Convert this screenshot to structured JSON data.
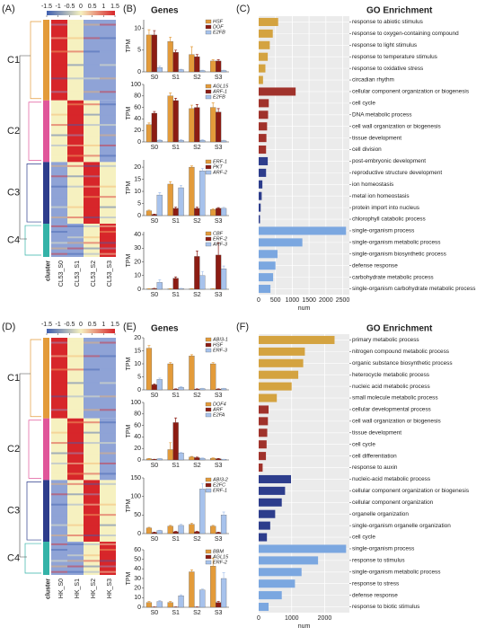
{
  "chart_data": [
    {
      "type": "heatmap",
      "panel": "(A)",
      "colorbar_ticks": [
        -1.5,
        -1,
        -0.5,
        0,
        0.5,
        1,
        1.5
      ],
      "clusters": [
        "C1",
        "C2",
        "C3",
        "C4"
      ],
      "columns": [
        "cluster",
        "CL53_S0",
        "CL53_S1",
        "CL53_S2",
        "CL53_S3"
      ]
    },
    {
      "type": "bar_panel",
      "panel": "(B)",
      "title": "Genes",
      "ylabel": "TPM",
      "subplots": [
        {
          "categories": [
            "S0",
            "S1",
            "S2",
            "S3"
          ],
          "ylim": [
            0,
            12
          ],
          "yticks": [
            0,
            5,
            10
          ],
          "series": [
            {
              "name": "HSF",
              "color": "#e39b3a",
              "values": [
                8.5,
                7,
                4,
                2.5
              ],
              "errors": [
                1.2,
                1,
                1.8,
                0.3
              ]
            },
            {
              "name": "DOF",
              "color": "#8c1c13",
              "values": [
                8.5,
                4.5,
                3.5,
                2.5
              ],
              "errors": [
                1,
                0.5,
                0.5,
                0.3
              ]
            },
            {
              "name": "E2FB",
              "color": "#a7c2ec",
              "values": [
                1,
                0.5,
                0.3,
                0.3
              ],
              "errors": [
                0.3,
                0.1,
                0.1,
                0.1
              ]
            }
          ]
        },
        {
          "categories": [
            "S0",
            "S1",
            "S2",
            "S3"
          ],
          "ylim": [
            0,
            100
          ],
          "yticks": [
            0,
            20,
            40,
            60,
            80,
            100
          ],
          "series": [
            {
              "name": "AGL15",
              "color": "#e39b3a",
              "values": [
                30,
                80,
                58,
                60
              ],
              "errors": [
                3,
                5,
                6,
                8
              ]
            },
            {
              "name": "ARF-1",
              "color": "#8c1c13",
              "values": [
                50,
                72,
                60,
                52
              ],
              "errors": [
                3,
                4,
                5,
                6
              ]
            },
            {
              "name": "E2FB",
              "color": "#a7c2ec",
              "values": [
                3,
                3,
                3,
                2
              ],
              "errors": [
                1,
                1,
                1,
                1
              ]
            }
          ]
        },
        {
          "categories": [
            "S0",
            "S1",
            "S2",
            "S3"
          ],
          "ylim": [
            0,
            23
          ],
          "yticks": [
            0,
            5,
            10,
            15,
            20
          ],
          "series": [
            {
              "name": "ERF-1",
              "color": "#e39b3a",
              "values": [
                2,
                13,
                20,
                2.5
              ],
              "errors": [
                0.3,
                1,
                0.5,
                0.3
              ]
            },
            {
              "name": "PKT",
              "color": "#8c1c13",
              "values": [
                0.5,
                3,
                3,
                3
              ],
              "errors": [
                0.1,
                0.5,
                0.5,
                0.3
              ]
            },
            {
              "name": "ARF-2",
              "color": "#a7c2ec",
              "values": [
                8.5,
                11.5,
                18.5,
                3
              ],
              "errors": [
                1,
                1,
                1,
                0.4
              ]
            }
          ]
        },
        {
          "categories": [
            "S0",
            "S1",
            "S2",
            "S3"
          ],
          "ylim": [
            0,
            42
          ],
          "yticks": [
            0,
            10,
            20,
            30,
            40
          ],
          "series": [
            {
              "name": "CBF",
              "color": "#e39b3a",
              "values": [
                0.3,
                0.3,
                0.3,
                0.3
              ],
              "errors": [
                0.1,
                0.1,
                0.1,
                0.1
              ]
            },
            {
              "name": "ERF-2",
              "color": "#8c1c13",
              "values": [
                0.5,
                8,
                24,
                25
              ],
              "errors": [
                0.2,
                1,
                4,
                9
              ]
            },
            {
              "name": "ARF-3",
              "color": "#a7c2ec",
              "values": [
                5,
                0.5,
                10,
                15
              ],
              "errors": [
                2,
                0.2,
                3,
                2
              ]
            }
          ]
        }
      ]
    },
    {
      "type": "hbar",
      "panel": "(C)",
      "title": "GO Enrichment",
      "xlabel": "num",
      "xlim": [
        0,
        2700
      ],
      "xticks": [
        0,
        500,
        1000,
        1500,
        2000,
        2500
      ],
      "categories": [
        "response to abiotic stimulus",
        "response to oxygen-containing compound",
        "response to light stimulus",
        "response to temperature stimulus",
        "response to oxidative stress",
        "circadian rhythm",
        "cellular component organization or biogenesis",
        "cell cycle",
        "DNA metabolic process",
        "cell wall organization or biogenesis",
        "tissue development",
        "cell division",
        "post-embryonic development",
        "reproductive structure development",
        "ion homeostasis",
        "metal ion homeostasis",
        "protein import into nucleus",
        "chlorophyll catabolic process",
        "single-organism process",
        "single-organism metabolic process",
        "single-organism biosynthetic process",
        "defense response",
        "carbohydrate metabolic process",
        "single-organism carbohydrate metabolic process"
      ],
      "values": [
        580,
        420,
        330,
        270,
        200,
        130,
        1100,
        300,
        280,
        250,
        230,
        220,
        270,
        220,
        110,
        90,
        60,
        40,
        2600,
        1300,
        560,
        500,
        430,
        350
      ],
      "colors": [
        "#d4a340",
        "#d4a340",
        "#d4a340",
        "#d4a340",
        "#d4a340",
        "#d4a340",
        "#a0322b",
        "#a0322b",
        "#a0322b",
        "#a0322b",
        "#a0322b",
        "#a0322b",
        "#2d3d8c",
        "#2d3d8c",
        "#2d3d8c",
        "#2d3d8c",
        "#2d3d8c",
        "#2d3d8c",
        "#7ba7e0",
        "#7ba7e0",
        "#7ba7e0",
        "#7ba7e0",
        "#7ba7e0",
        "#7ba7e0"
      ]
    },
    {
      "type": "heatmap",
      "panel": "(D)",
      "colorbar_ticks": [
        -1.5,
        -1,
        -0.5,
        0,
        0.5,
        1,
        1.5
      ],
      "clusters": [
        "C1",
        "C2",
        "C3",
        "C4"
      ],
      "columns": [
        "cluster",
        "HK_S0",
        "HK_S1",
        "HK_S2",
        "HK_S3"
      ]
    },
    {
      "type": "bar_panel",
      "panel": "(E)",
      "title": "Genes",
      "ylabel": "TPM",
      "subplots": [
        {
          "categories": [
            "S0",
            "S1",
            "S2",
            "S3"
          ],
          "ylim": [
            0,
            20
          ],
          "yticks": [
            0,
            5,
            10,
            15,
            20
          ],
          "series": [
            {
              "name": "ABI3-1",
              "color": "#e39b3a",
              "values": [
                16,
                10,
                13,
                10
              ],
              "errors": [
                1,
                0.5,
                0.5,
                0.5
              ]
            },
            {
              "name": "HSF",
              "color": "#8c1c13",
              "values": [
                2,
                0.3,
                0.3,
                0.3
              ],
              "errors": [
                0.3,
                0.1,
                0.1,
                0.1
              ]
            },
            {
              "name": "ERF-3",
              "color": "#a7c2ec",
              "values": [
                4,
                1,
                0.5,
                0.5
              ],
              "errors": [
                0.5,
                0.2,
                0.1,
                0.1
              ]
            }
          ]
        },
        {
          "categories": [
            "S0",
            "S1",
            "S2",
            "S3"
          ],
          "ylim": [
            0,
            100
          ],
          "yticks": [
            0,
            20,
            40,
            60,
            80,
            100
          ],
          "series": [
            {
              "name": "DOF4",
              "color": "#e39b3a",
              "values": [
                2,
                18,
                5,
                3
              ],
              "errors": [
                0.5,
                12,
                1,
                0.5
              ]
            },
            {
              "name": "ARF",
              "color": "#8c1c13",
              "values": [
                1,
                65,
                4,
                2
              ],
              "errors": [
                0.3,
                8,
                1,
                0.5
              ]
            },
            {
              "name": "E2FA",
              "color": "#a7c2ec",
              "values": [
                2,
                12,
                3,
                1
              ],
              "errors": [
                0.5,
                1,
                0.5,
                0.3
              ]
            }
          ]
        },
        {
          "categories": [
            "S0",
            "S1",
            "S2",
            "S3"
          ],
          "ylim": [
            0,
            150
          ],
          "yticks": [
            0,
            50,
            100,
            150
          ],
          "series": [
            {
              "name": "ABI3-2",
              "color": "#e39b3a",
              "values": [
                15,
                20,
                25,
                20
              ],
              "errors": [
                2,
                2,
                3,
                2
              ]
            },
            {
              "name": "E2FC",
              "color": "#8c1c13",
              "values": [
                3,
                5,
                5,
                3
              ],
              "errors": [
                1,
                1,
                1,
                1
              ]
            },
            {
              "name": "ERF-1",
              "color": "#a7c2ec",
              "values": [
                8,
                22,
                120,
                50
              ],
              "errors": [
                1,
                3,
                15,
                8
              ]
            }
          ]
        },
        {
          "categories": [
            "S0",
            "S1",
            "S2",
            "S3"
          ],
          "ylim": [
            0,
            60
          ],
          "yticks": [
            0,
            10,
            20,
            30,
            40,
            50,
            60
          ],
          "series": [
            {
              "name": "BBM",
              "color": "#e39b3a",
              "values": [
                5,
                5,
                37,
                43
              ],
              "errors": [
                1,
                1,
                2,
                8
              ]
            },
            {
              "name": "AGL15",
              "color": "#8c1c13",
              "values": [
                0.3,
                0.3,
                0.3,
                5
              ],
              "errors": [
                0.1,
                0.1,
                0.1,
                1
              ]
            },
            {
              "name": "ERF-2",
              "color": "#a7c2ec",
              "values": [
                6,
                12,
                18,
                30
              ],
              "errors": [
                1,
                1,
                1,
                6
              ]
            }
          ]
        }
      ]
    },
    {
      "type": "hbar",
      "panel": "(F)",
      "title": "GO Enrichment",
      "xlabel": "num",
      "xlim": [
        0,
        2750
      ],
      "xticks": [
        0,
        1000,
        2000
      ],
      "categories": [
        "primary metabolic process",
        "nitrogen compound metabolic process",
        "organic substance biosynthetic process",
        "heterocycle metabolic process",
        "nucleic acid metabolic process",
        "small molecule metabolic process",
        "cellular developmental process",
        "cell wall organization or biogenesis",
        "tissue development",
        "cell cycle",
        "cell differentiation",
        "response to auxin",
        "nucleic-acid metabolic process",
        "cellular component organization or biogenesis",
        "cellular component organization",
        "organelle organization",
        "single-organism organelle organization",
        "cell cycle",
        "single-organism process",
        "response to stimulus",
        "single-organism metabolic process",
        "response to stress",
        "defense response",
        "response to biotic stimulus"
      ],
      "values": [
        2300,
        1400,
        1350,
        1200,
        1000,
        550,
        300,
        280,
        260,
        240,
        220,
        120,
        980,
        800,
        700,
        500,
        350,
        250,
        2650,
        1800,
        1300,
        1100,
        700,
        300
      ],
      "colors": [
        "#d4a340",
        "#d4a340",
        "#d4a340",
        "#d4a340",
        "#d4a340",
        "#d4a340",
        "#a0322b",
        "#a0322b",
        "#a0322b",
        "#a0322b",
        "#a0322b",
        "#a0322b",
        "#2d3d8c",
        "#2d3d8c",
        "#2d3d8c",
        "#2d3d8c",
        "#2d3d8c",
        "#2d3d8c",
        "#7ba7e0",
        "#7ba7e0",
        "#7ba7e0",
        "#7ba7e0",
        "#7ba7e0",
        "#7ba7e0"
      ]
    }
  ]
}
